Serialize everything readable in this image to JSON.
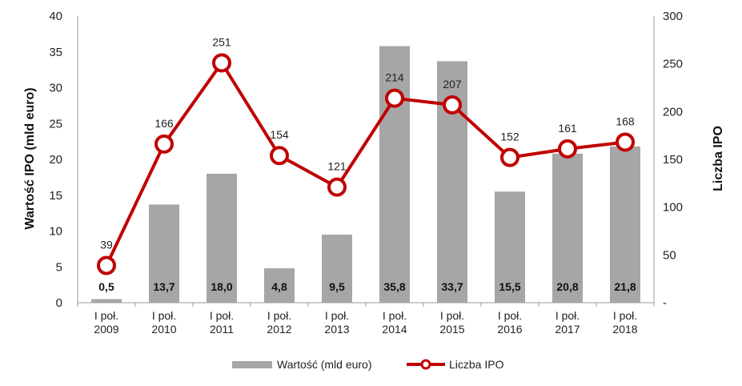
{
  "chart_data": {
    "type": "bar+line",
    "categories": [
      [
        "I poł.",
        "2009"
      ],
      [
        "I poł.",
        "2010"
      ],
      [
        "I poł.",
        "2011"
      ],
      [
        "I poł.",
        "2012"
      ],
      [
        "I poł.",
        "2013"
      ],
      [
        "I poł.",
        "2014"
      ],
      [
        "I poł.",
        "2015"
      ],
      [
        "I poł.",
        "2016"
      ],
      [
        "I poł.",
        "2017"
      ],
      [
        "I poł.",
        "2018"
      ]
    ],
    "series": [
      {
        "name": "Wartość (mld euro)",
        "type": "bar",
        "axis": "left",
        "color": "#a6a6a6",
        "values": [
          0.5,
          13.7,
          18.0,
          4.8,
          9.5,
          35.8,
          33.7,
          15.5,
          20.8,
          21.8
        ],
        "labels": [
          "0,5",
          "13,7",
          "18,0",
          "4,8",
          "9,5",
          "35,8",
          "33,7",
          "15,5",
          "20,8",
          "21,8"
        ]
      },
      {
        "name": "Liczba IPO",
        "type": "line",
        "axis": "right",
        "color": "#c00000",
        "values": [
          39,
          166,
          251,
          154,
          121,
          214,
          207,
          152,
          161,
          168
        ],
        "labels": [
          "39",
          "166",
          "251",
          "154",
          "121",
          "214",
          "207",
          "152",
          "161",
          "168"
        ]
      }
    ],
    "y_left": {
      "label": "Wartość IPO (mld euro)",
      "range": [
        0,
        40
      ],
      "ticks": [
        0,
        5,
        10,
        15,
        20,
        25,
        30,
        35,
        40
      ],
      "tick_labels": [
        "0",
        "5",
        "10",
        "15",
        "20",
        "25",
        "30",
        "35",
        "40"
      ]
    },
    "y_right": {
      "label": "Liczba IPO",
      "range": [
        0,
        300
      ],
      "ticks": [
        0,
        50,
        100,
        150,
        200,
        250,
        300
      ],
      "tick_labels": [
        "-",
        "50",
        "100",
        "150",
        "200",
        "250",
        "300"
      ]
    },
    "grid": false,
    "legend": "bottom"
  }
}
